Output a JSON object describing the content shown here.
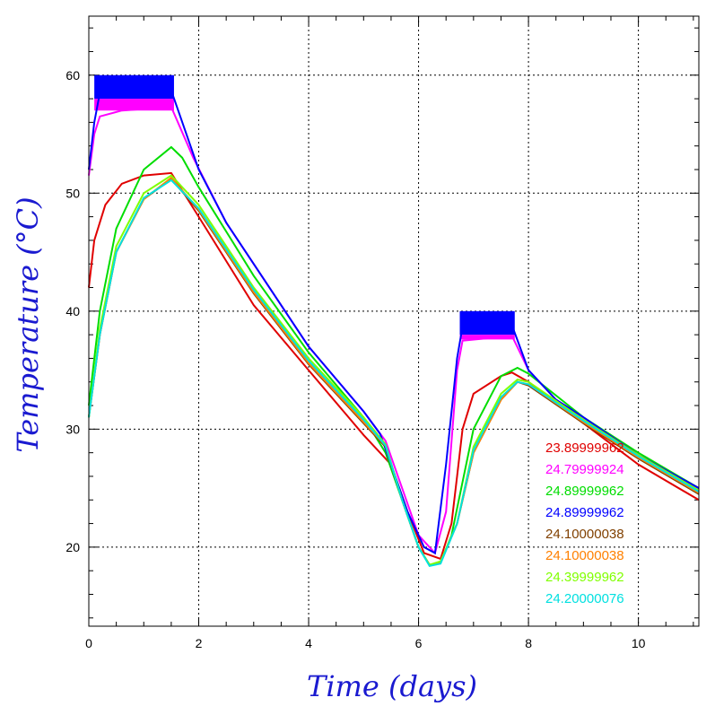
{
  "chart_data": {
    "type": "line",
    "xlabel": "Time (days)",
    "ylabel": "Temperature (°C)",
    "xlim": [
      0,
      11.1
    ],
    "ylim": [
      13.3,
      65
    ],
    "x_ticks": [
      "0",
      "2",
      "4",
      "6",
      "8",
      "10"
    ],
    "y_ticks": [
      "20",
      "30",
      "40",
      "50",
      "60"
    ],
    "grid": true,
    "legend_position": "bottom-right",
    "series": [
      {
        "name": "23.89999962",
        "color": "#e00000",
        "points": [
          [
            0,
            42
          ],
          [
            0.1,
            46
          ],
          [
            0.3,
            49
          ],
          [
            0.6,
            50.8
          ],
          [
            1.0,
            51.5
          ],
          [
            1.5,
            51.7
          ],
          [
            2,
            48
          ],
          [
            3,
            40.5
          ],
          [
            4,
            35
          ],
          [
            5,
            29.5
          ],
          [
            5.3,
            28
          ],
          [
            5.5,
            27
          ],
          [
            5.8,
            23
          ],
          [
            6.1,
            19.5
          ],
          [
            6.4,
            19
          ],
          [
            6.6,
            22
          ],
          [
            6.7,
            26
          ],
          [
            6.8,
            30
          ],
          [
            7,
            33
          ],
          [
            7.5,
            34.5
          ],
          [
            7.7,
            34.8
          ],
          [
            8,
            34
          ],
          [
            9,
            30.5
          ],
          [
            10,
            27
          ],
          [
            11.1,
            24
          ]
        ]
      },
      {
        "name": "24.79999924",
        "color": "#ff00ff",
        "points": [
          [
            0,
            51.5
          ],
          [
            0.1,
            55
          ],
          [
            0.2,
            56.5
          ],
          [
            0.6,
            57
          ],
          [
            1.5,
            57.3
          ],
          [
            1.9,
            53
          ],
          [
            2.5,
            47.5
          ],
          [
            3,
            44
          ],
          [
            4,
            37
          ],
          [
            5,
            31.5
          ],
          [
            5.4,
            29
          ],
          [
            5.7,
            25
          ],
          [
            6.0,
            21
          ],
          [
            6.3,
            19.5
          ],
          [
            6.5,
            23
          ],
          [
            6.7,
            35
          ],
          [
            6.8,
            37.5
          ],
          [
            7.7,
            37.9
          ],
          [
            8,
            35
          ],
          [
            8.5,
            32.5
          ],
          [
            9,
            31
          ],
          [
            10,
            27.8
          ],
          [
            11.1,
            25
          ]
        ]
      },
      {
        "name": "24.89999962",
        "color": "#00dd00",
        "points": [
          [
            0,
            32
          ],
          [
            0.2,
            40
          ],
          [
            0.5,
            47
          ],
          [
            1.0,
            52
          ],
          [
            1.5,
            53.9
          ],
          [
            1.7,
            53
          ],
          [
            2,
            50.5
          ],
          [
            3,
            43
          ],
          [
            4,
            36.5
          ],
          [
            5,
            31
          ],
          [
            5.4,
            28
          ],
          [
            5.7,
            24
          ],
          [
            6.0,
            20
          ],
          [
            6.2,
            18.5
          ],
          [
            6.4,
            18.7
          ],
          [
            6.6,
            21
          ],
          [
            7,
            30
          ],
          [
            7.5,
            34.5
          ],
          [
            7.8,
            35.2
          ],
          [
            8,
            34.7
          ],
          [
            9,
            31
          ],
          [
            10,
            28
          ],
          [
            11.1,
            25
          ]
        ]
      },
      {
        "name": "24.89999962",
        "color": "#0000ff",
        "points": [
          [
            0,
            52
          ],
          [
            0.1,
            56
          ],
          [
            0.2,
            58.5
          ],
          [
            1.5,
            58.7
          ],
          [
            2,
            52
          ],
          [
            2.5,
            47.5
          ],
          [
            3,
            44
          ],
          [
            4,
            37
          ],
          [
            5,
            31.5
          ],
          [
            5.3,
            29.6
          ],
          [
            5.5,
            27
          ],
          [
            5.8,
            23
          ],
          [
            6.1,
            20
          ],
          [
            6.3,
            19.5
          ],
          [
            6.5,
            27
          ],
          [
            6.7,
            36
          ],
          [
            6.8,
            38.7
          ],
          [
            7.7,
            38.8
          ],
          [
            8,
            35
          ],
          [
            8.5,
            32.5
          ],
          [
            9,
            31
          ],
          [
            10,
            27.8
          ],
          [
            11.1,
            25
          ]
        ]
      },
      {
        "name": "24.10000038",
        "color": "#804000",
        "points": [
          [
            0,
            31
          ],
          [
            0.2,
            38
          ],
          [
            0.5,
            45
          ],
          [
            1.0,
            49.5
          ],
          [
            1.5,
            51.2
          ],
          [
            2,
            48.5
          ],
          [
            3,
            41.5
          ],
          [
            4,
            35.5
          ],
          [
            5,
            30.5
          ],
          [
            5.4,
            28.5
          ],
          [
            5.7,
            24
          ],
          [
            6.0,
            20
          ],
          [
            6.2,
            18.5
          ],
          [
            6.4,
            18.7
          ],
          [
            6.7,
            22
          ],
          [
            7,
            28
          ],
          [
            7.5,
            32.5
          ],
          [
            7.8,
            34
          ],
          [
            8,
            33.7
          ],
          [
            9,
            30.5
          ],
          [
            10,
            27.5
          ],
          [
            11.1,
            24.5
          ]
        ]
      },
      {
        "name": "24.10000038",
        "color": "#ff8000",
        "points": [
          [
            0,
            31
          ],
          [
            0.2,
            38
          ],
          [
            0.5,
            45
          ],
          [
            1.0,
            49.5
          ],
          [
            1.5,
            51.3
          ],
          [
            2,
            48.6
          ],
          [
            3,
            41.6
          ],
          [
            4,
            35.6
          ],
          [
            5,
            30.6
          ],
          [
            5.4,
            28.6
          ],
          [
            5.7,
            24
          ],
          [
            6.0,
            20
          ],
          [
            6.2,
            18.5
          ],
          [
            6.4,
            18.7
          ],
          [
            6.7,
            22
          ],
          [
            7,
            28
          ],
          [
            7.5,
            32.5
          ],
          [
            7.8,
            34
          ],
          [
            8,
            33.8
          ],
          [
            9,
            30.6
          ],
          [
            10,
            27.6
          ],
          [
            11.1,
            24.6
          ]
        ]
      },
      {
        "name": "24.39999962",
        "color": "#80ff00",
        "points": [
          [
            0,
            31
          ],
          [
            0.2,
            38.5
          ],
          [
            0.5,
            45.5
          ],
          [
            1.0,
            50
          ],
          [
            1.5,
            51.5
          ],
          [
            2,
            49
          ],
          [
            3,
            42
          ],
          [
            4,
            36
          ],
          [
            5,
            31
          ],
          [
            5.4,
            28.7
          ],
          [
            5.7,
            24
          ],
          [
            6.0,
            20
          ],
          [
            6.2,
            18.5
          ],
          [
            6.4,
            18.8
          ],
          [
            6.7,
            22
          ],
          [
            7,
            28.5
          ],
          [
            7.5,
            33
          ],
          [
            7.8,
            34.2
          ],
          [
            8,
            34
          ],
          [
            9,
            30.8
          ],
          [
            10,
            27.8
          ],
          [
            11.1,
            24.8
          ]
        ]
      },
      {
        "name": "24.20000076",
        "color": "#00e0e0",
        "points": [
          [
            0,
            31
          ],
          [
            0.2,
            38
          ],
          [
            0.5,
            45
          ],
          [
            1.0,
            49.6
          ],
          [
            1.5,
            51.1
          ],
          [
            2,
            48.7
          ],
          [
            3,
            41.8
          ],
          [
            4,
            35.8
          ],
          [
            5,
            30.8
          ],
          [
            5.4,
            28.6
          ],
          [
            5.7,
            24
          ],
          [
            6.0,
            20
          ],
          [
            6.2,
            18.4
          ],
          [
            6.4,
            18.6
          ],
          [
            6.7,
            22
          ],
          [
            7,
            28.2
          ],
          [
            7.5,
            32.7
          ],
          [
            7.8,
            34
          ],
          [
            8,
            33.8
          ],
          [
            9,
            30.7
          ],
          [
            10,
            27.7
          ],
          [
            11.1,
            24.7
          ]
        ]
      }
    ],
    "filled_bands": [
      {
        "color": "#0000ff",
        "x": [
          0.1,
          1.55
        ],
        "y": [
          58,
          60
        ]
      },
      {
        "color": "#ff00ff",
        "x": [
          0.1,
          1.55
        ],
        "y": [
          57,
          58
        ]
      },
      {
        "color": "#0000ff",
        "x": [
          6.75,
          7.75
        ],
        "y": [
          38,
          40
        ]
      },
      {
        "color": "#ff00ff",
        "x": [
          6.75,
          7.75
        ],
        "y": [
          37.6,
          38
        ]
      }
    ]
  }
}
